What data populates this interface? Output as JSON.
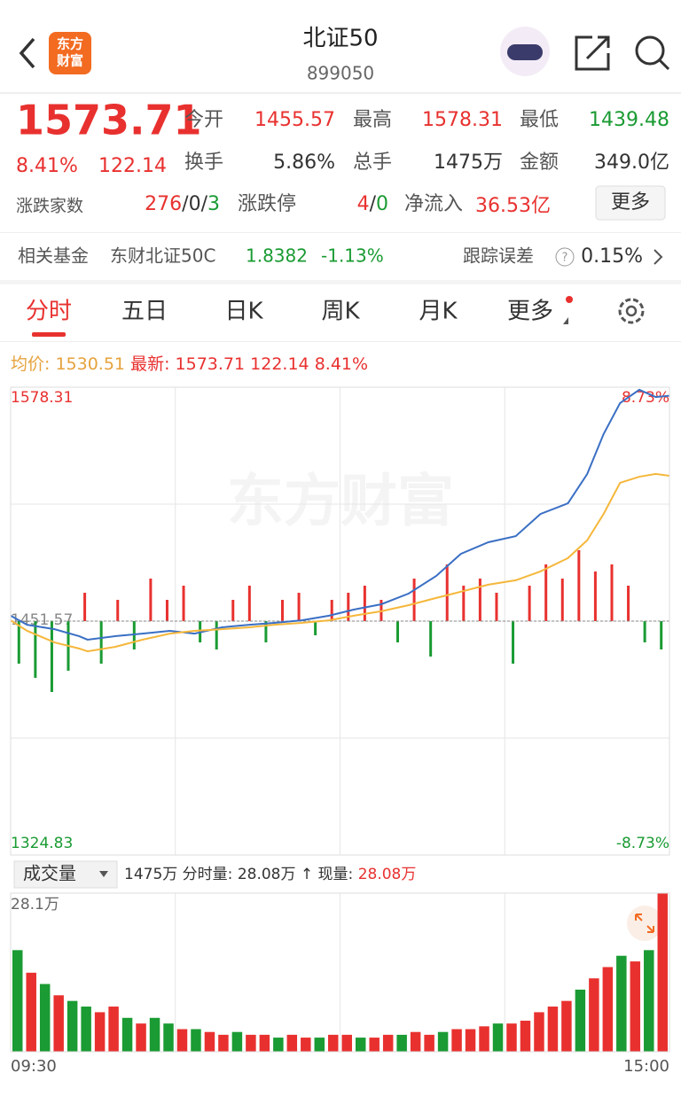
{
  "header": {
    "title": "北证50",
    "code": "899050",
    "logo": [
      "东方",
      "财富"
    ]
  },
  "quote": {
    "price": "1573.71",
    "change_pct": "8.41%",
    "change": "122.14",
    "open_label": "今开",
    "open": "1455.57",
    "high_label": "最高",
    "high": "1578.31",
    "low_label": "最低",
    "low": "1439.48",
    "turnover_label": "换手",
    "turnover": "5.86%",
    "volume_label": "总手",
    "volume": "1475万",
    "amount_label": "金额",
    "amount": "349.0亿",
    "breadth_label": "涨跌家数",
    "breadth": [
      "276",
      "/",
      "0",
      "/",
      "3"
    ],
    "limit_label": "涨跌停",
    "limit": [
      "4",
      "/",
      "0"
    ],
    "inflow_label": "净流入",
    "inflow": "36.53亿",
    "more": "更多"
  },
  "fund": {
    "label": "相关基金",
    "name": "东财北证50C",
    "nav": "1.8382",
    "change": "-1.13%",
    "error_label": "跟踪误差",
    "help": "?",
    "error": "0.15%"
  },
  "tabs": [
    "分时",
    "五日",
    "日K",
    "周K",
    "月K",
    "更多"
  ],
  "info": {
    "avg_label": "均价:",
    "avg": "1530.51",
    "last_label": "最新:",
    "last": "1573.71",
    "change": "122.14",
    "change_pct": "8.41%"
  },
  "watermark": "东方财富",
  "chart": {
    "type": "line",
    "xlim": [
      0,
      240
    ],
    "ylim": [
      1324.83,
      1578.31
    ],
    "yticks": [
      1324.83,
      1451.57,
      1578.31
    ],
    "grid_y": [
      1324.83,
      1388.2,
      1451.57,
      1514.94,
      1578.31
    ],
    "grid_x": [
      0,
      60,
      120,
      180,
      240
    ],
    "y2lim": [
      -8.73,
      8.73
    ],
    "y2ticks": [
      {
        "value": -8.73,
        "label": "-8.73%"
      },
      {
        "value": 8.73,
        "label": "8.73%"
      }
    ],
    "x": [
      0,
      6,
      16,
      25,
      28,
      38,
      48,
      58,
      67,
      77,
      87,
      96,
      106,
      116,
      125,
      135,
      145,
      155,
      164,
      174,
      184,
      193,
      203,
      210,
      216,
      222,
      229,
      235,
      240
    ],
    "series": [
      {
        "color": "#3a6fc4",
        "values": [
          1454.5,
          1449.6,
          1447.2,
          1443.4,
          1441.5,
          1443.4,
          1444.8,
          1446.3,
          1444.8,
          1448.2,
          1449.6,
          1450.6,
          1452.0,
          1454.5,
          1457.8,
          1460.7,
          1466.5,
          1476.0,
          1488.0,
          1494.3,
          1497.6,
          1509.6,
          1515.4,
          1531.2,
          1552.9,
          1569.7,
          1576.9,
          1573.0,
          1573.71
        ]
      },
      {
        "color": "#f5b73b",
        "values": [
          1452.0,
          1446.3,
          1440.0,
          1436.7,
          1435.2,
          1437.6,
          1441.5,
          1444.8,
          1446.3,
          1447.2,
          1448.2,
          1449.6,
          1450.6,
          1452.0,
          1454.5,
          1456.9,
          1460.2,
          1464.1,
          1467.5,
          1471.3,
          1473.7,
          1478.5,
          1485.7,
          1495.3,
          1509.6,
          1526.5,
          1529.8,
          1531.3,
          1530.3
        ]
      }
    ],
    "flow": [
      -6,
      -8,
      -10,
      -7,
      4,
      -6,
      3,
      -4,
      6,
      3,
      5,
      -3,
      -4,
      3,
      5,
      -3,
      3,
      4,
      -2,
      3,
      4,
      5,
      3,
      -3,
      6,
      -5,
      8,
      5,
      6,
      4,
      -6,
      5,
      8,
      6,
      10,
      7,
      8,
      5,
      -3,
      -4
    ],
    "up_color": "#e8312f",
    "down_color": "#1a9b33"
  },
  "volume": {
    "selector": "成交量",
    "total": "1475万",
    "period_label": "分时量:",
    "period": "28.08万",
    "arrow": "↑",
    "current_label": "现量:",
    "current": "28.08万",
    "type": "bar",
    "ylim": [
      0,
      28.1
    ],
    "yticks": [
      {
        "value": 28.1,
        "label": "28.1万"
      }
    ],
    "xticks": [
      {
        "value": 0,
        "label": "09:30"
      },
      {
        "value": 240,
        "label": "15:00"
      }
    ],
    "values": [
      18,
      14,
      12,
      10,
      9,
      8,
      7,
      8,
      6,
      5,
      6,
      5,
      4,
      4,
      3.5,
      3,
      3.5,
      3,
      3,
      2.5,
      3,
      2.5,
      2.5,
      3,
      3,
      2.5,
      2.5,
      3,
      3,
      3.5,
      3,
      3.5,
      4,
      4,
      4.5,
      5,
      5,
      5.5,
      7,
      8,
      9,
      11,
      13,
      15,
      17,
      16,
      18,
      28.08
    ],
    "colors": [
      "#1a9b33",
      "#e8312f",
      "#1a9b33",
      "#e8312f",
      "#1a9b33",
      "#1a9b33",
      "#e8312f",
      "#e8312f",
      "#1a9b33",
      "#e8312f",
      "#1a9b33",
      "#1a9b33",
      "#e8312f",
      "#1a9b33",
      "#e8312f",
      "#e8312f",
      "#1a9b33",
      "#e8312f",
      "#e8312f",
      "#1a9b33",
      "#e8312f",
      "#e8312f",
      "#1a9b33",
      "#e8312f",
      "#e8312f",
      "#1a9b33",
      "#e8312f",
      "#e8312f",
      "#1a9b33",
      "#e8312f",
      "#e8312f",
      "#1a9b33",
      "#e8312f",
      "#e8312f",
      "#e8312f",
      "#1a9b33",
      "#e8312f",
      "#e8312f",
      "#e8312f",
      "#e8312f",
      "#e8312f",
      "#1a9b33",
      "#e8312f",
      "#e8312f",
      "#1a9b33",
      "#e8312f",
      "#1a9b33",
      "#e8312f"
    ]
  }
}
